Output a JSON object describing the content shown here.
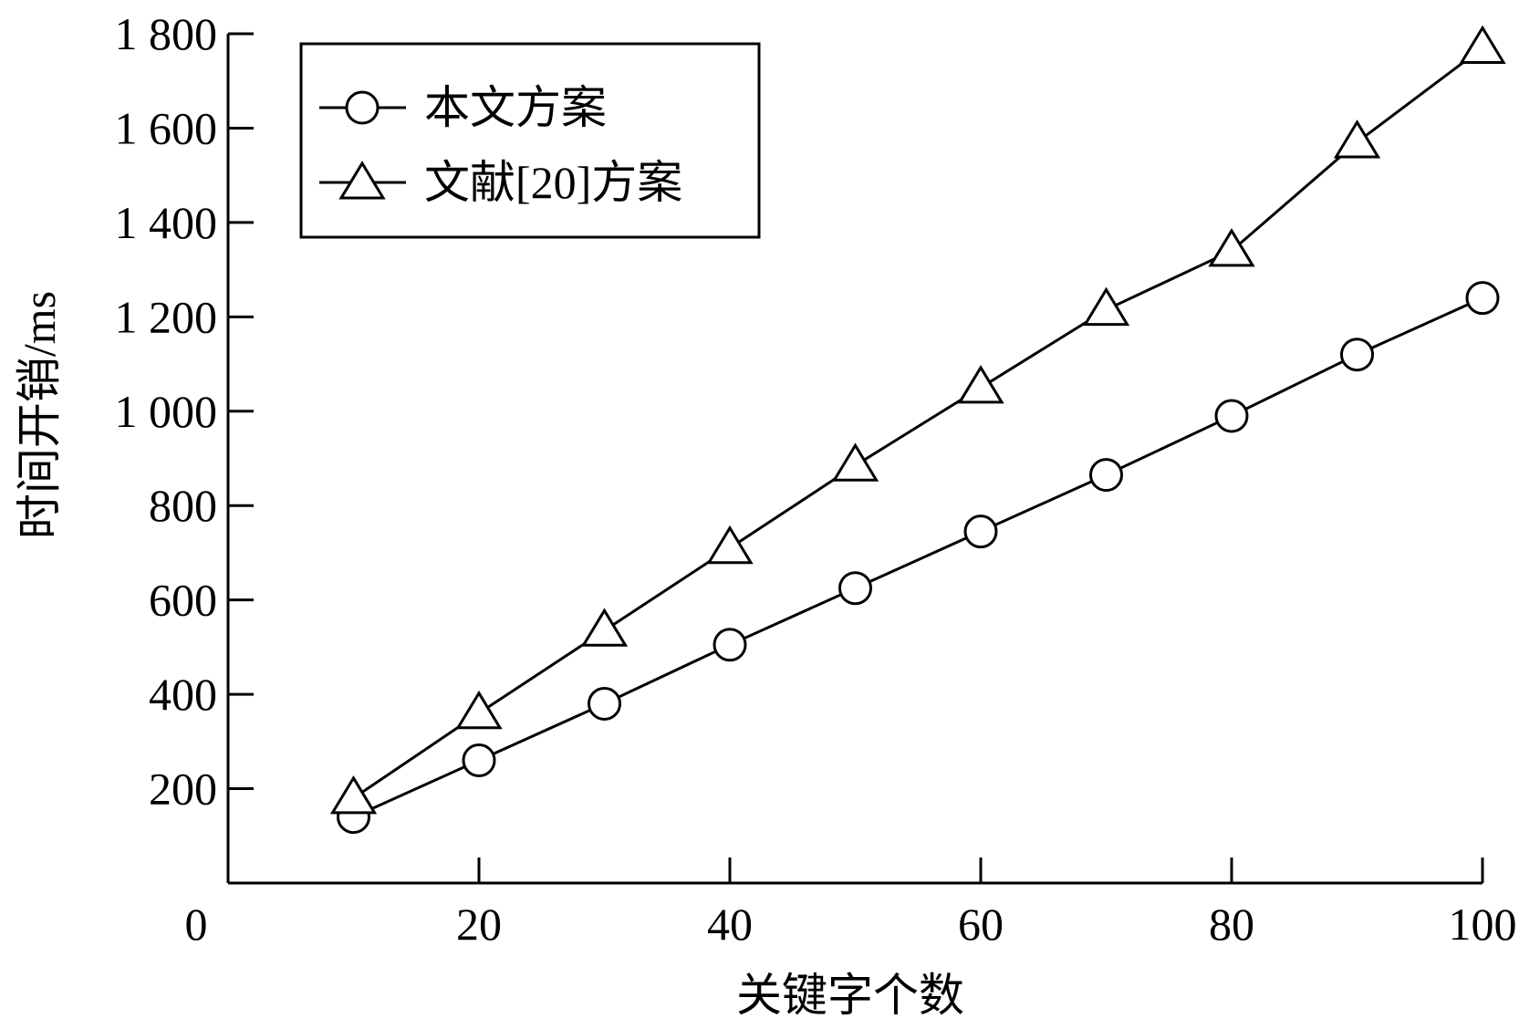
{
  "chart_data": {
    "type": "line",
    "xlabel": "关键字个数",
    "ylabel": "时间开销/ms",
    "x_origin_label": "0",
    "xlim": [
      0,
      100
    ],
    "ylim": [
      0,
      1800
    ],
    "xticks": [
      20,
      40,
      60,
      80,
      100
    ],
    "xtick_labels": [
      "20",
      "40",
      "60",
      "80",
      "100"
    ],
    "yticks": [
      200,
      400,
      600,
      800,
      1000,
      1200,
      1400,
      1600,
      1800
    ],
    "ytick_labels": [
      "200",
      "400",
      "600",
      "800",
      "1 000",
      "1 200",
      "1 400",
      "1 600",
      "1 800"
    ],
    "grid": false,
    "legend_position": "top-left",
    "x": [
      10,
      20,
      30,
      40,
      50,
      60,
      70,
      80,
      90,
      100
    ],
    "series": [
      {
        "name": "本文方案",
        "marker": "circle",
        "values": [
          140,
          260,
          380,
          505,
          625,
          745,
          865,
          990,
          1120,
          1240
        ]
      },
      {
        "name": "文献[20]方案",
        "marker": "triangle",
        "values": [
          180,
          360,
          535,
          710,
          885,
          1050,
          1215,
          1340,
          1570,
          1770
        ]
      }
    ],
    "colors": {
      "line": "#000000",
      "background": "#ffffff"
    }
  }
}
